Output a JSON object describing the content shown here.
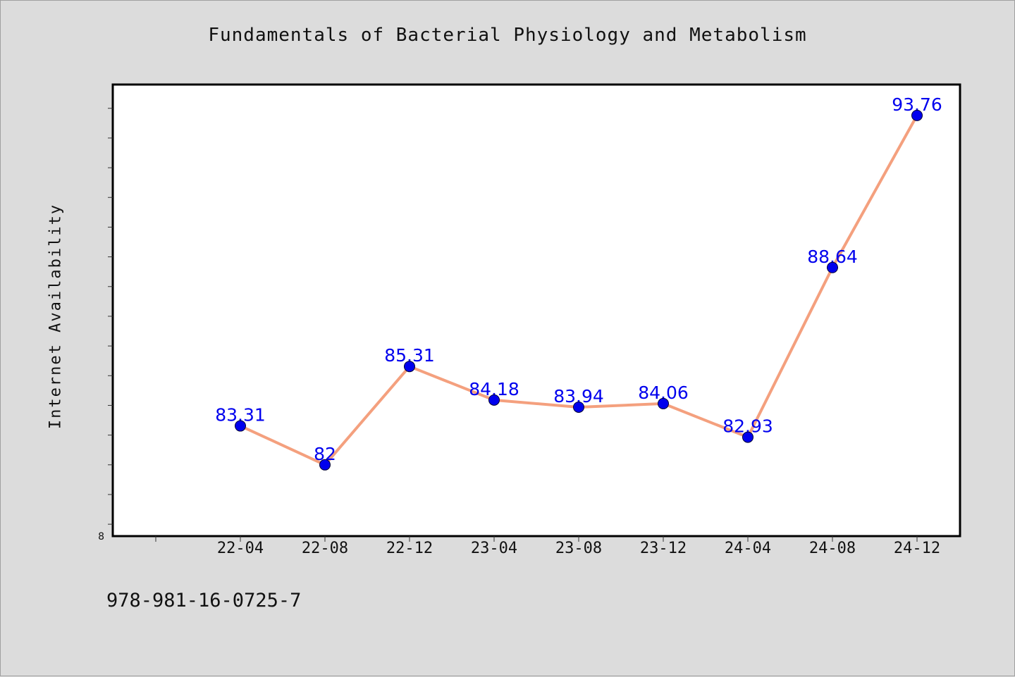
{
  "chart_data": {
    "type": "line",
    "title": "Fundamentals of Bacterial Physiology and Metabolism",
    "xlabel": "",
    "ylabel": "Internet Availability",
    "categories": [
      "22-04",
      "22-08",
      "22-12",
      "23-04",
      "23-08",
      "23-12",
      "24-04",
      "24-08",
      "24-12"
    ],
    "series": [
      {
        "values": [
          83.31,
          82,
          85.31,
          84.18,
          83.94,
          84.06,
          82.93,
          88.64,
          93.76
        ],
        "labels": [
          "83.31",
          "82",
          "85.31",
          "84.18",
          "83.94",
          "84.06",
          "82.93",
          "88.64",
          "93.76"
        ]
      }
    ],
    "ylim": [
      79.6,
      94.8
    ],
    "y_axis_min_label": "8",
    "grid": false,
    "colors": {
      "line": "#f4a07e",
      "marker": "#0000ee",
      "label": "#0000ee",
      "frame": "#000000",
      "plot_bg": "#ffffff",
      "page_bg": "#dcdcdc"
    }
  },
  "footer": {
    "id_text": "978-981-16-0725-7"
  }
}
